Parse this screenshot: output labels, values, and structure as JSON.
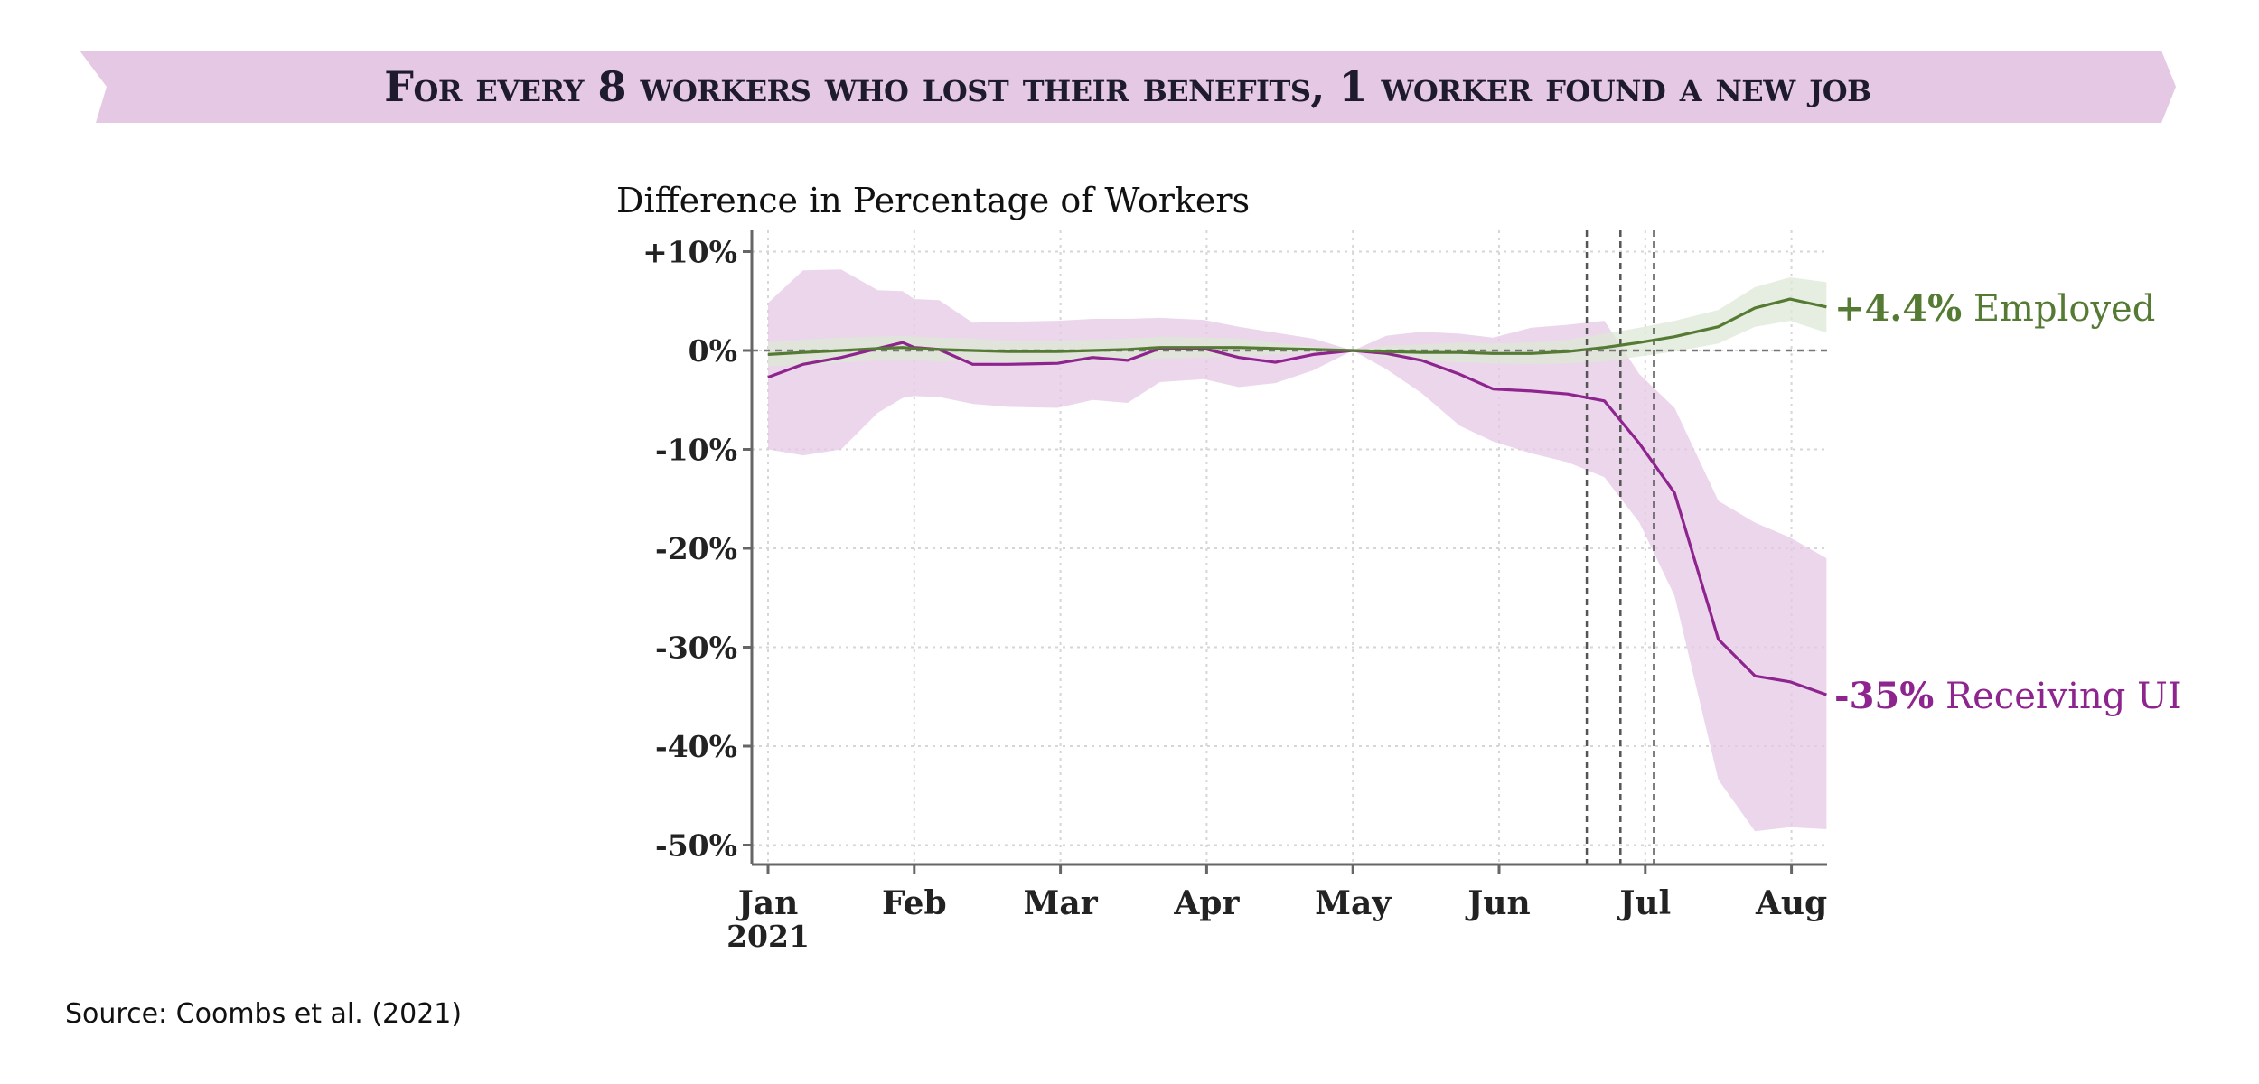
{
  "header": {
    "title": "For every 8 workers who lost their benefits, 1 worker found a new job",
    "banner_color": "#e4c8e4"
  },
  "source": "Source: Coombs et al. (2021)",
  "chart_data": {
    "type": "line",
    "ylabel": "Difference in Percentage of Workers",
    "ylim": [
      -52,
      12
    ],
    "yticks": [
      10,
      0,
      -10,
      -20,
      -30,
      -40,
      -50
    ],
    "ytick_labels": [
      "+10%",
      "0%",
      "-10%",
      "-20%",
      "-30%",
      "-40%",
      "-50%"
    ],
    "xticks": [
      {
        "label": "Jan",
        "sub": "2021",
        "month": 0
      },
      {
        "label": "Feb",
        "sub": "",
        "month": 1
      },
      {
        "label": "Mar",
        "sub": "",
        "month": 2
      },
      {
        "label": "Apr",
        "sub": "",
        "month": 3
      },
      {
        "label": "May",
        "sub": "",
        "month": 4
      },
      {
        "label": "Jun",
        "sub": "",
        "month": 5
      },
      {
        "label": "Jul",
        "sub": "",
        "month": 6
      },
      {
        "label": "Aug",
        "sub": "",
        "month": 7
      }
    ],
    "xlim": [
      -0.05,
      7.33
    ],
    "x": [
      0,
      0.24,
      0.5,
      0.75,
      0.92,
      1.0,
      1.17,
      1.4,
      1.64,
      1.98,
      2.22,
      2.46,
      2.68,
      2.98,
      3.22,
      3.47,
      3.73,
      4.0,
      4.23,
      4.47,
      4.73,
      4.96,
      5.22,
      5.47,
      5.72,
      5.96,
      6.2,
      6.5,
      6.75,
      6.99,
      7.24
    ],
    "reference_lines_x": [
      5.6,
      5.83,
      6.06
    ],
    "zero_line": true,
    "grid": true,
    "series": [
      {
        "name": "Receiving UI",
        "label_value": "-35%",
        "label_text": "Receiving UI",
        "color": "#8e248e",
        "band_color": "#e6c8e6",
        "values": [
          -2.7,
          -1.4,
          -0.7,
          0.2,
          0.8,
          0.3,
          0.1,
          -1.4,
          -1.4,
          -1.3,
          -0.7,
          -1.0,
          0.2,
          0.2,
          -0.7,
          -1.2,
          -0.4,
          0.0,
          -0.3,
          -1.0,
          -2.4,
          -3.9,
          -4.1,
          -4.4,
          -5.1,
          -9.4,
          -14.4,
          -29.2,
          -32.9,
          -33.5,
          -34.8
        ],
        "lower": [
          -10.0,
          -10.6,
          -10.0,
          -6.3,
          -4.8,
          -4.6,
          -4.7,
          -5.4,
          -5.7,
          -5.8,
          -5.0,
          -5.3,
          -3.2,
          -2.9,
          -3.7,
          -3.3,
          -2.0,
          0.0,
          -1.9,
          -4.3,
          -7.6,
          -9.2,
          -10.4,
          -11.3,
          -12.8,
          -17.4,
          -24.8,
          -43.4,
          -48.6,
          -48.2,
          -48.4
        ],
        "upper": [
          4.8,
          8.1,
          8.2,
          6.1,
          6.0,
          5.2,
          5.1,
          2.8,
          2.9,
          3.0,
          3.2,
          3.2,
          3.3,
          3.1,
          2.4,
          1.8,
          1.2,
          0.0,
          1.5,
          1.9,
          1.7,
          1.3,
          2.3,
          2.6,
          3.0,
          -2.4,
          -5.8,
          -15.2,
          -17.4,
          -18.9,
          -21.0
        ]
      },
      {
        "name": "Employed",
        "label_value": "+4.4%",
        "label_text": "Employed",
        "color": "#557a33",
        "band_color": "#dce8d6",
        "values": [
          -0.4,
          -0.2,
          0.0,
          0.2,
          0.3,
          0.2,
          0.1,
          0.0,
          -0.1,
          -0.1,
          0.0,
          0.1,
          0.3,
          0.3,
          0.3,
          0.2,
          0.1,
          0.0,
          -0.1,
          -0.2,
          -0.2,
          -0.3,
          -0.3,
          -0.1,
          0.3,
          0.8,
          1.4,
          2.4,
          4.3,
          5.2,
          4.4
        ],
        "lower": [
          -1.6,
          -1.5,
          -1.2,
          -1.0,
          -0.9,
          -1.0,
          -1.1,
          -1.1,
          -1.2,
          -1.2,
          -1.1,
          -1.0,
          -0.8,
          -0.7,
          -0.6,
          -0.4,
          -0.2,
          0.0,
          -0.7,
          -1.0,
          -1.2,
          -1.3,
          -1.4,
          -1.3,
          -1.1,
          -0.6,
          -0.1,
          0.7,
          2.4,
          3.0,
          1.8
        ],
        "upper": [
          0.8,
          1.1,
          1.3,
          1.4,
          1.5,
          1.4,
          1.3,
          1.2,
          1.0,
          1.0,
          1.1,
          1.2,
          1.4,
          1.3,
          1.2,
          0.8,
          0.4,
          0.0,
          0.5,
          0.6,
          0.8,
          0.7,
          0.8,
          1.1,
          1.7,
          2.3,
          3.0,
          4.1,
          6.4,
          7.4,
          6.9
        ]
      }
    ]
  }
}
